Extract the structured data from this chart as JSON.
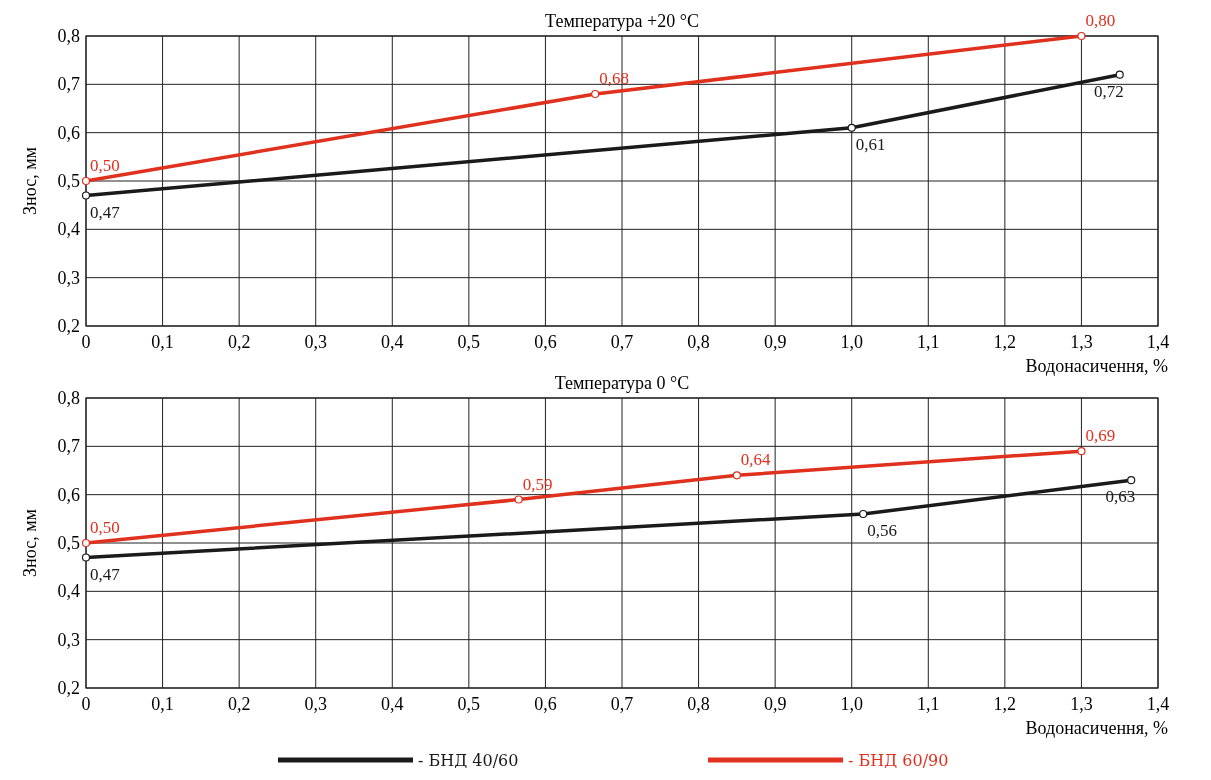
{
  "chart_data": [
    {
      "type": "line",
      "title": "Температура +20 °C",
      "ylabel": "Знос, мм",
      "xlabel": "Водонасичення, %",
      "xlim": [
        0,
        1.4
      ],
      "ylim": [
        0.2,
        0.8
      ],
      "xticks": [
        0,
        {
          "value": 0.1,
          "label": "0,1"
        },
        {
          "value": 0.2,
          "label": "0,2"
        },
        {
          "value": 0.3,
          "label": "0,3"
        },
        {
          "value": 0.4,
          "label": "0,4"
        },
        {
          "value": 0.5,
          "label": "0,5"
        },
        {
          "value": 0.6,
          "label": "0,6"
        },
        {
          "value": 0.7,
          "label": "0,7"
        },
        {
          "value": 0.8,
          "label": "0,8"
        },
        {
          "value": 0.9,
          "label": "0,9"
        },
        {
          "value": 1.0,
          "label": "1,0"
        },
        {
          "value": 1.1,
          "label": "1,1"
        },
        {
          "value": 1.2,
          "label": "1,2"
        },
        {
          "value": 1.3,
          "label": "1,3"
        },
        {
          "value": 1.4,
          "label": "1,4"
        }
      ],
      "yticks": [
        {
          "value": 0.2,
          "label": "0,2"
        },
        {
          "value": 0.3,
          "label": "0,3"
        },
        {
          "value": 0.4,
          "label": "0,4"
        },
        {
          "value": 0.5,
          "label": "0,5"
        },
        {
          "value": 0.6,
          "label": "0,6"
        },
        {
          "value": 0.7,
          "label": "0,7"
        },
        {
          "value": 0.8,
          "label": "0,8"
        }
      ],
      "grid": true,
      "marker": "circle",
      "series": [
        {
          "color": "#1a1a1a",
          "x": [
            0,
            1.0,
            1.35
          ],
          "values": [
            0.47,
            0.61,
            0.72
          ],
          "value_labels": [
            "0,47",
            "0,61",
            "0,72"
          ]
        },
        {
          "color": "#e0301e",
          "x": [
            0,
            0.665,
            1.3
          ],
          "values": [
            0.5,
            0.68,
            0.8
          ],
          "value_labels": [
            "0,50",
            "0,68",
            "0,80"
          ]
        }
      ]
    },
    {
      "type": "line",
      "title": "Температура 0 °C",
      "ylabel": "Знос, мм",
      "xlabel": "Водонасичення, %",
      "xlim": [
        0,
        1.4
      ],
      "ylim": [
        0.2,
        0.8
      ],
      "xticks": [
        0,
        {
          "value": 0.1,
          "label": "0,1"
        },
        {
          "value": 0.2,
          "label": "0,2"
        },
        {
          "value": 0.3,
          "label": "0,3"
        },
        {
          "value": 0.4,
          "label": "0,4"
        },
        {
          "value": 0.5,
          "label": "0,5"
        },
        {
          "value": 0.6,
          "label": "0,6"
        },
        {
          "value": 0.7,
          "label": "0,7"
        },
        {
          "value": 0.8,
          "label": "0,8"
        },
        {
          "value": 0.9,
          "label": "0,9"
        },
        {
          "value": 1.0,
          "label": "1,0"
        },
        {
          "value": 1.1,
          "label": "1,1"
        },
        {
          "value": 1.2,
          "label": "1,2"
        },
        {
          "value": 1.3,
          "label": "1,3"
        },
        {
          "value": 1.4,
          "label": "1,4"
        }
      ],
      "yticks": [
        {
          "value": 0.2,
          "label": "0,2"
        },
        {
          "value": 0.3,
          "label": "0,3"
        },
        {
          "value": 0.4,
          "label": "0,4"
        },
        {
          "value": 0.5,
          "label": "0,5"
        },
        {
          "value": 0.6,
          "label": "0,6"
        },
        {
          "value": 0.7,
          "label": "0,7"
        },
        {
          "value": 0.8,
          "label": "0,8"
        }
      ],
      "grid": true,
      "marker": "circle",
      "legend": "bottom",
      "series": [
        {
          "name": "- БНД 40/60",
          "color": "#1a1a1a",
          "x": [
            0,
            1.015,
            1.365
          ],
          "values": [
            0.47,
            0.56,
            0.63
          ],
          "value_labels": [
            "0,47",
            "0,56",
            "0,63"
          ]
        },
        {
          "name": "- БНД 60/90",
          "color": "#e0301e",
          "x": [
            0,
            0.565,
            0.85,
            1.3
          ],
          "values": [
            0.5,
            0.59,
            0.64,
            0.69
          ],
          "value_labels": [
            "0,50",
            "0,59",
            "0,64",
            "0,69"
          ]
        }
      ]
    }
  ]
}
